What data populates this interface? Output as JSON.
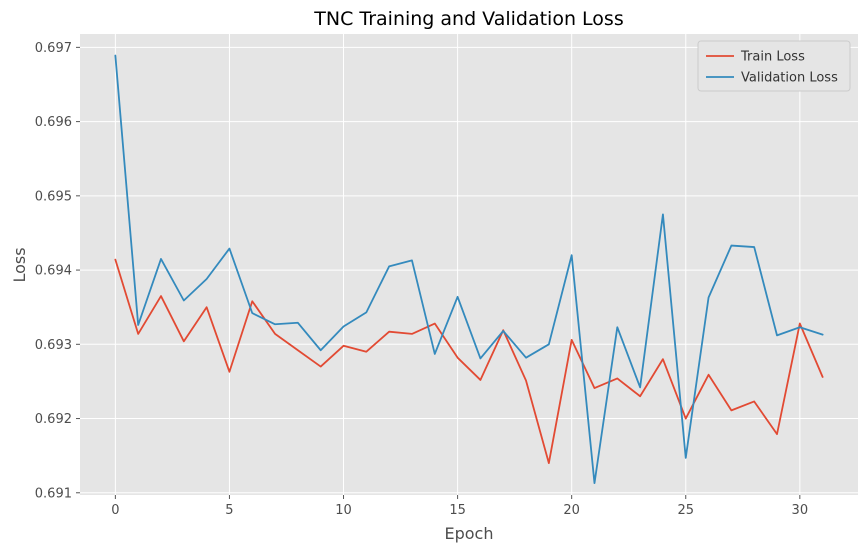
{
  "chart_data": {
    "type": "line",
    "title": "TNC Training and Validation Loss",
    "xlabel": "Epoch",
    "ylabel": "Loss",
    "xlim": [
      -1.55,
      32.55
    ],
    "ylim": [
      0.69097,
      0.69718
    ],
    "xticks": [
      0,
      5,
      10,
      15,
      20,
      25,
      30
    ],
    "yticks": [
      0.691,
      0.692,
      0.693,
      0.694,
      0.695,
      0.696,
      0.697
    ],
    "grid": true,
    "legend": "top-right",
    "x": [
      0,
      1,
      2,
      3,
      4,
      5,
      6,
      7,
      8,
      9,
      10,
      11,
      12,
      13,
      14,
      15,
      16,
      17,
      18,
      19,
      20,
      21,
      22,
      23,
      24,
      25,
      26,
      27,
      28,
      29,
      30,
      31
    ],
    "series": [
      {
        "name": "Train Loss",
        "color": "#E24A33",
        "values": [
          0.69414,
          0.69314,
          0.69365,
          0.69304,
          0.6935,
          0.69263,
          0.69358,
          0.69314,
          0.69292,
          0.6927,
          0.69298,
          0.6929,
          0.69317,
          0.69314,
          0.69328,
          0.69282,
          0.69252,
          0.69319,
          0.69251,
          0.6914,
          0.69306,
          0.69241,
          0.69254,
          0.6923,
          0.6928,
          0.692,
          0.69259,
          0.69211,
          0.69223,
          0.69179,
          0.69328,
          0.69256
        ]
      },
      {
        "name": "Validation Loss",
        "color": "#348ABD",
        "values": [
          0.69689,
          0.69326,
          0.69415,
          0.69359,
          0.69388,
          0.69429,
          0.69342,
          0.69327,
          0.69329,
          0.69292,
          0.69324,
          0.69343,
          0.69405,
          0.69413,
          0.69287,
          0.69364,
          0.69281,
          0.69318,
          0.69282,
          0.693,
          0.6942,
          0.69113,
          0.69323,
          0.69242,
          0.69475,
          0.69147,
          0.69363,
          0.69433,
          0.69431,
          0.69312,
          0.69323,
          0.69313
        ]
      }
    ]
  }
}
